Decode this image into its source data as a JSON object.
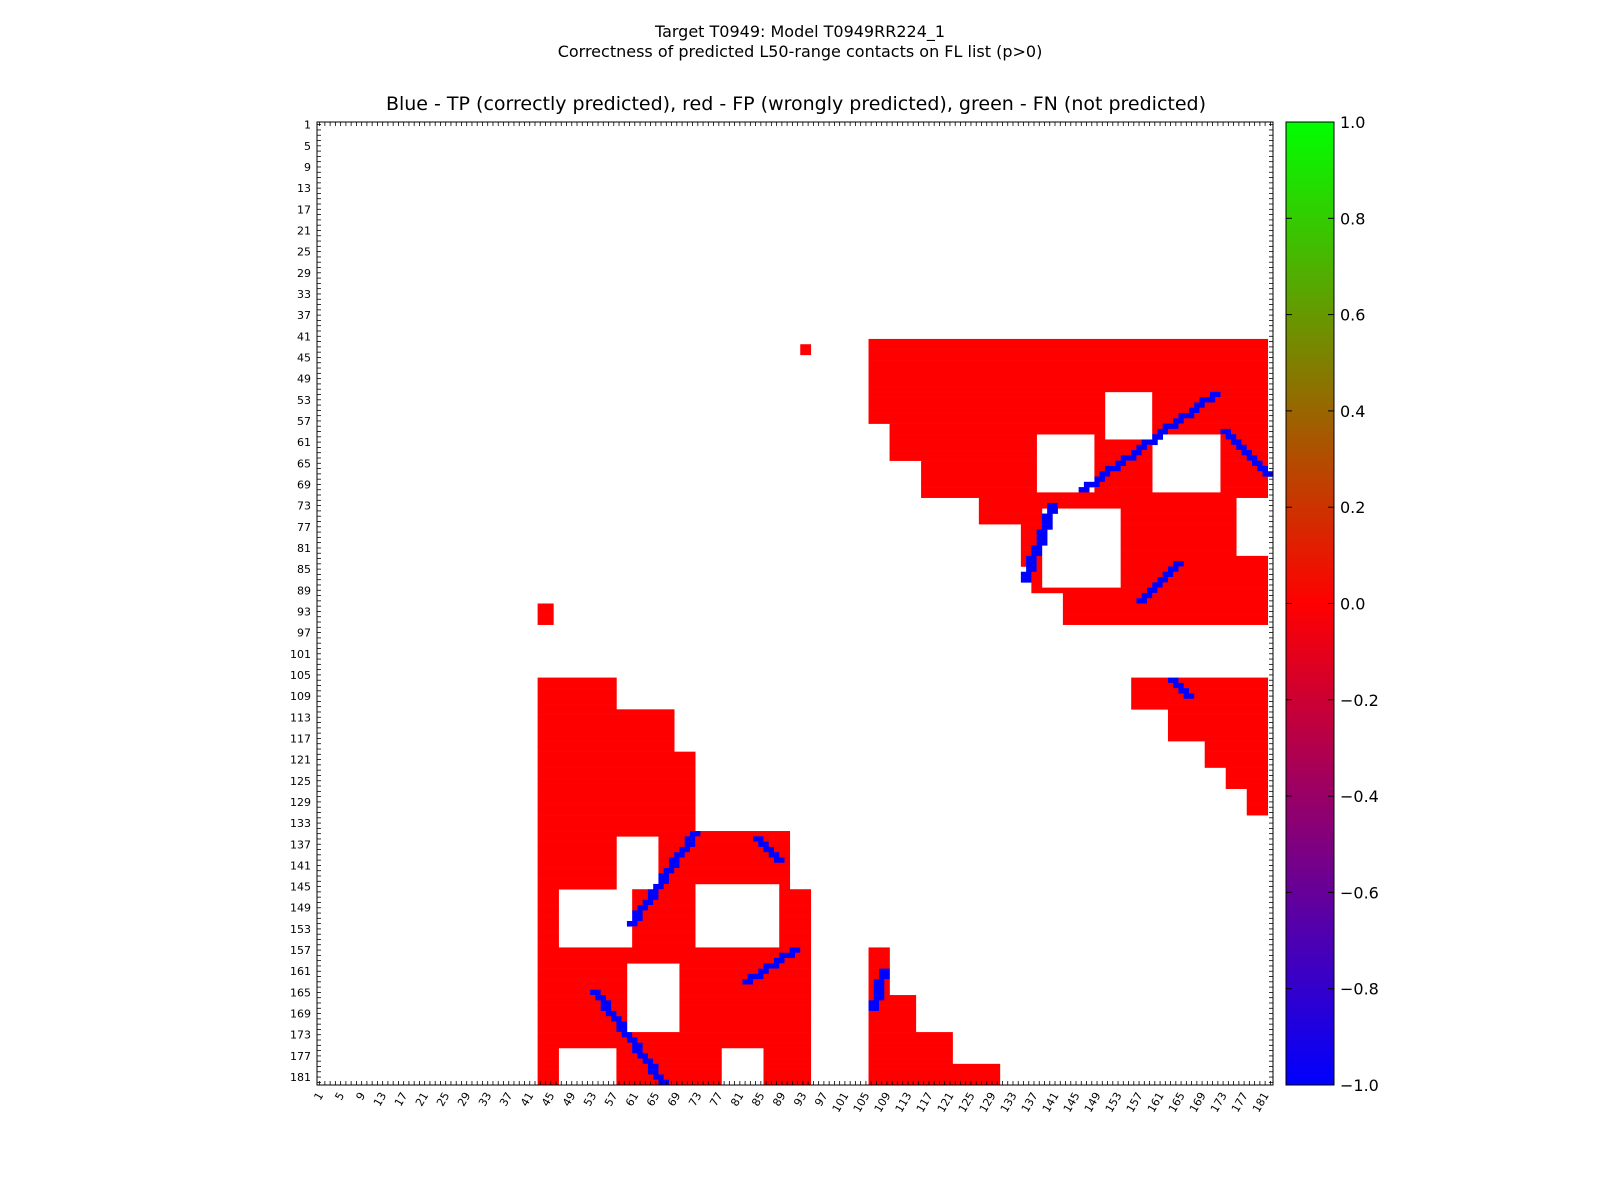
{
  "suptitle": {
    "line1": "Target T0949: Model T0949RR224_1",
    "line2": "Correctness of predicted L50-range contacts on FL list (p>0)"
  },
  "chart_data": {
    "type": "heatmap",
    "title": "Blue - TP (correctly predicted), red - FP (wrongly predicted), green - FN (not predicted)",
    "n_residues": 182,
    "x_ticks": [
      1,
      5,
      9,
      13,
      17,
      21,
      25,
      29,
      33,
      37,
      41,
      45,
      49,
      53,
      57,
      61,
      65,
      69,
      73,
      77,
      81,
      85,
      89,
      93,
      97,
      101,
      105,
      109,
      113,
      117,
      121,
      125,
      129,
      133,
      137,
      141,
      145,
      149,
      153,
      157,
      161,
      165,
      169,
      173,
      177,
      181
    ],
    "y_ticks": [
      1,
      5,
      9,
      13,
      17,
      21,
      25,
      29,
      33,
      37,
      41,
      45,
      49,
      53,
      57,
      61,
      65,
      69,
      73,
      77,
      81,
      85,
      89,
      93,
      97,
      101,
      105,
      109,
      113,
      117,
      121,
      125,
      129,
      133,
      137,
      141,
      145,
      149,
      153,
      157,
      161,
      165,
      169,
      173,
      177,
      181
    ],
    "colorbar": {
      "min": -1.0,
      "max": 1.0,
      "ticks": [
        "1.0",
        "0.8",
        "0.6",
        "0.4",
        "0.2",
        "0.0",
        "−0.2",
        "−0.4",
        "−0.6",
        "−0.8",
        "−1.0"
      ],
      "tick_values": [
        1.0,
        0.8,
        0.6,
        0.4,
        0.2,
        0.0,
        -0.2,
        -0.4,
        -0.6,
        -0.8,
        -1.0
      ],
      "colors": [
        "#00ff00",
        "#ff0000",
        "#0000ff"
      ]
    },
    "fp_color": "#ff0000",
    "tp_color": "#0000ff",
    "fn_color": "#00ff00",
    "fp_regions": [
      {
        "i": [
          42,
          48
        ],
        "j": [
          106,
          181
        ]
      },
      {
        "i": [
          49,
          57
        ],
        "j": [
          106,
          181
        ]
      },
      {
        "i": [
          58,
          64
        ],
        "j": [
          110,
          181
        ]
      },
      {
        "i": [
          65,
          71
        ],
        "j": [
          116,
          181
        ]
      },
      {
        "i": [
          72,
          76
        ],
        "j": [
          127,
          181
        ]
      },
      {
        "i": [
          77,
          84
        ],
        "j": [
          135,
          181
        ]
      },
      {
        "i": [
          85,
          89
        ],
        "j": [
          137,
          181
        ]
      },
      {
        "i": [
          90,
          95
        ],
        "j": [
          143,
          181
        ]
      },
      {
        "i": [
          43,
          44
        ],
        "j": [
          93,
          94
        ]
      },
      {
        "i": [
          106,
          111
        ],
        "j": [
          156,
          181
        ]
      },
      {
        "i": [
          112,
          117
        ],
        "j": [
          163,
          181
        ]
      },
      {
        "i": [
          118,
          122
        ],
        "j": [
          170,
          181
        ]
      },
      {
        "i": [
          123,
          126
        ],
        "j": [
          174,
          181
        ]
      },
      {
        "i": [
          127,
          131
        ],
        "j": [
          178,
          181
        ]
      },
      {
        "i": [
          92,
          95
        ],
        "j": [
          43,
          45
        ]
      },
      {
        "i": [
          106,
          134
        ],
        "j": [
          43,
          57
        ]
      },
      {
        "i": [
          112,
          134
        ],
        "j": [
          58,
          68
        ]
      },
      {
        "i": [
          120,
          134
        ],
        "j": [
          69,
          72
        ]
      },
      {
        "i": [
          135,
          158
        ],
        "j": [
          43,
          56
        ]
      },
      {
        "i": [
          135,
          158
        ],
        "j": [
          57,
          90
        ]
      },
      {
        "i": [
          146,
          182
        ],
        "j": [
          88,
          94
        ]
      },
      {
        "i": [
          159,
          182
        ],
        "j": [
          43,
          94
        ]
      },
      {
        "i": [
          157,
          165
        ],
        "j": [
          106,
          109
        ]
      },
      {
        "i": [
          166,
          172
        ],
        "j": [
          106,
          114
        ]
      },
      {
        "i": [
          173,
          178
        ],
        "j": [
          106,
          121
        ]
      },
      {
        "i": [
          179,
          182
        ],
        "j": [
          106,
          130
        ]
      }
    ],
    "fn_holes": [
      {
        "i": [
          52,
          60
        ],
        "j": [
          151,
          159
        ]
      },
      {
        "i": [
          60,
          70
        ],
        "j": [
          138,
          148
        ]
      },
      {
        "i": [
          60,
          70
        ],
        "j": [
          160,
          172
        ]
      },
      {
        "i": [
          74,
          88
        ],
        "j": [
          139,
          153
        ]
      },
      {
        "i": [
          72,
          82
        ],
        "j": [
          176,
          181
        ]
      },
      {
        "i": [
          136,
          145
        ],
        "j": [
          58,
          65
        ]
      },
      {
        "i": [
          146,
          156
        ],
        "j": [
          47,
          60
        ]
      },
      {
        "i": [
          145,
          156
        ],
        "j": [
          73,
          88
        ]
      },
      {
        "i": [
          160,
          172
        ],
        "j": [
          60,
          69
        ]
      },
      {
        "i": [
          176,
          182
        ],
        "j": [
          47,
          57
        ]
      },
      {
        "i": [
          176,
          182
        ],
        "j": [
          78,
          85
        ]
      }
    ],
    "tp_diagonals": [
      {
        "i0": 52,
        "j0": 171,
        "i1": 70,
        "j1": 146
      },
      {
        "i0": 59,
        "j0": 173,
        "i1": 67,
        "j1": 181
      },
      {
        "i0": 73,
        "j0": 140,
        "i1": 87,
        "j1": 135
      },
      {
        "i0": 84,
        "j0": 164,
        "i1": 91,
        "j1": 157
      },
      {
        "i0": 106,
        "j0": 163,
        "i1": 109,
        "j1": 166
      },
      {
        "i0": 135,
        "j0": 72,
        "i1": 152,
        "j1": 60
      },
      {
        "i0": 136,
        "j0": 84,
        "i1": 140,
        "j1": 88
      },
      {
        "i0": 157,
        "j0": 91,
        "i1": 163,
        "j1": 82
      },
      {
        "i0": 165,
        "j0": 53,
        "i1": 182,
        "j1": 66
      },
      {
        "i0": 161,
        "j0": 108,
        "i1": 168,
        "j1": 106
      }
    ]
  }
}
